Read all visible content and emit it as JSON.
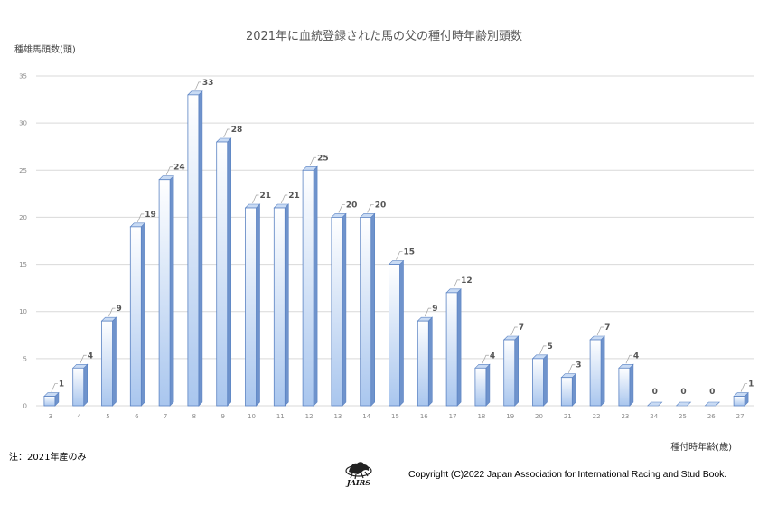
{
  "title": "2021年に血統登録された馬の父の種付時年齢別頭数",
  "note": "注：2021年産のみ",
  "copyright": "Copyright (C)2022  Japan Association for International Racing and Stud Book.",
  "logo_text": "JAIRS",
  "colors": {
    "bar_top": "#ffffff",
    "bar_bottom": "#a9c6ee",
    "bar_edge": "#5b83c3",
    "bar_side": "#6f93cc",
    "grid": "#d9d9d9"
  },
  "chart_data": {
    "type": "bar",
    "title": "2021年に血統登録された馬の父の種付時年齢別頭数",
    "xlabel": "種付時年齢(歳)",
    "ylabel": "種雄馬頭数(頭)",
    "categories": [
      "3",
      "4",
      "5",
      "6",
      "7",
      "8",
      "9",
      "10",
      "11",
      "12",
      "13",
      "14",
      "15",
      "16",
      "17",
      "18",
      "19",
      "20",
      "21",
      "22",
      "23",
      "24",
      "25",
      "26",
      "27"
    ],
    "values": [
      1,
      4,
      9,
      19,
      24,
      33,
      28,
      21,
      21,
      25,
      20,
      20,
      15,
      9,
      12,
      4,
      7,
      5,
      3,
      7,
      4,
      0,
      0,
      0,
      1
    ],
    "ylim": [
      0,
      35
    ],
    "yticks": [
      0,
      5,
      10,
      15,
      20,
      25,
      30,
      35
    ],
    "grid": true,
    "legend": "none"
  }
}
